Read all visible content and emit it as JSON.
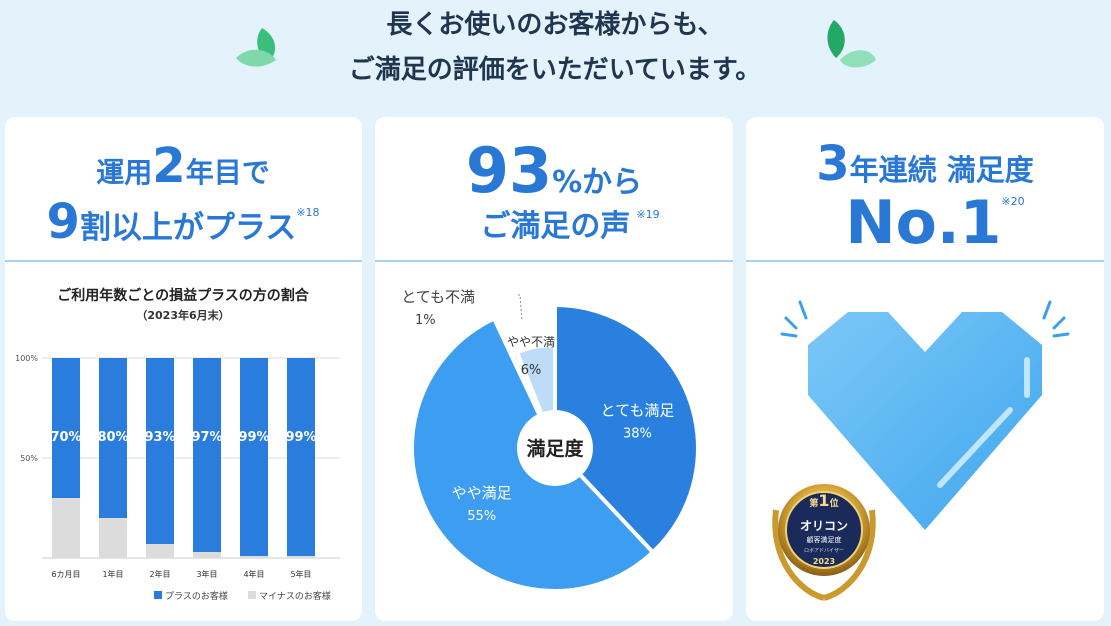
{
  "heading": [
    "長くお使いのお客様からも、",
    "ご満足の評価をいただいています。"
  ],
  "cards": [
    {
      "title": [
        "運用",
        "2",
        "年目で",
        "9",
        "割以上がプラス"
      ],
      "note": "※18"
    },
    {
      "title": [
        "93",
        "%から",
        "ご満足の声"
      ],
      "note": "※19"
    },
    {
      "title": [
        "3",
        "年連続 満足度",
        "No.1"
      ],
      "note": "※20",
      "badge": [
        "第",
        "1",
        "位",
        "オリコン",
        "顧客満足度",
        "ロボアドバイザー",
        "2023"
      ]
    }
  ],
  "chart_data": [
    {
      "type": "stacked_bar",
      "title": "ご利用年数ごとの損益プラスの方の割合",
      "subtitle": "（2023年6月末）",
      "categories": [
        "6カ月目",
        "1年目",
        "2年目",
        "3年目",
        "4年目",
        "5年目"
      ],
      "series": [
        {
          "name": "マイナスのお客様",
          "color": "#dcdcdc",
          "values": [
            30,
            20,
            7,
            3,
            1,
            1
          ]
        },
        {
          "name": "プラスのお客様",
          "color": "#2a7ddc",
          "values": [
            70,
            80,
            93,
            97,
            99,
            99
          ],
          "value_labels": [
            "70%",
            "80%",
            "93%",
            "97%",
            "99%",
            "99%"
          ]
        }
      ],
      "ylim": [
        0,
        100
      ],
      "yticks": [
        {
          "value": 50,
          "label": "50%"
        },
        {
          "value": 100,
          "label": "100%"
        }
      ],
      "grid": true
    },
    {
      "type": "donut",
      "center_label": "満足度",
      "categories": [
        "とても満足",
        "やや満足",
        "とても不満",
        "やや不満"
      ],
      "values": [
        38,
        55,
        1,
        6
      ],
      "value_labels": [
        "38%",
        "55%",
        "1%",
        "6%"
      ],
      "colors": [
        "#2a80de",
        "#3d9df1",
        "#eef6fe",
        "#bcdcf8"
      ]
    }
  ]
}
